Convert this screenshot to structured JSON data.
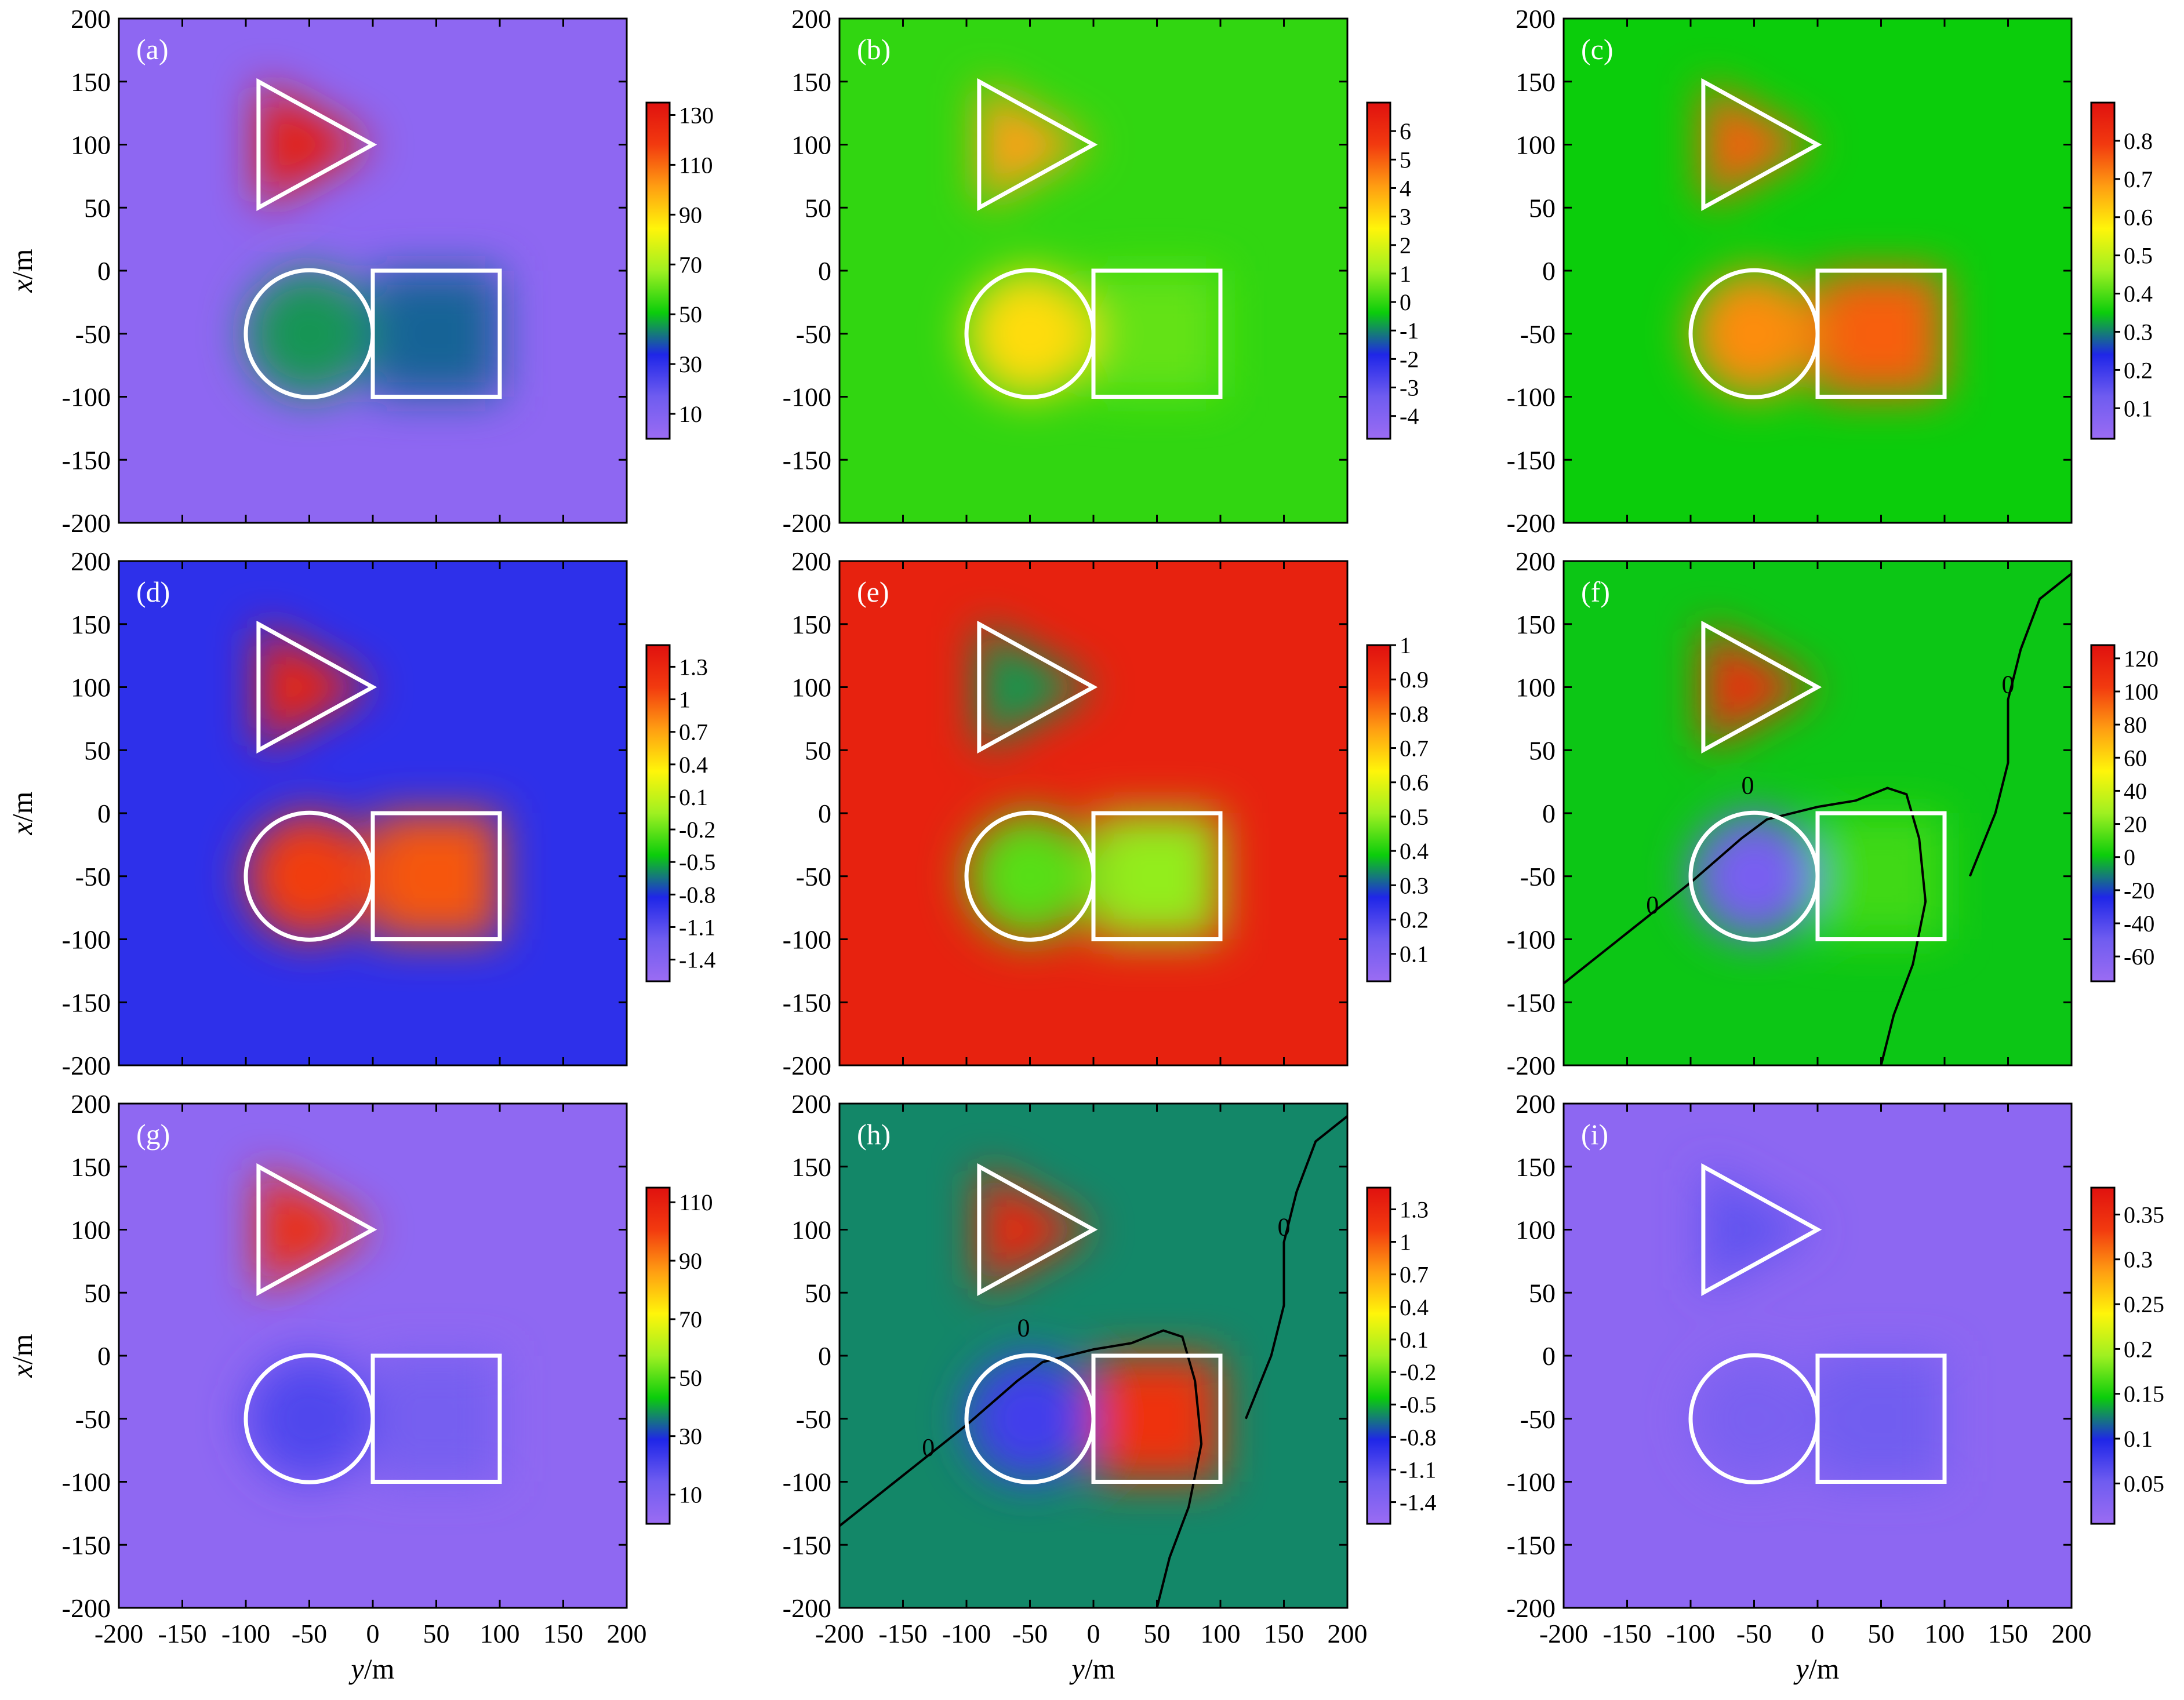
{
  "figure": {
    "x_axis_label_italic": "y",
    "x_axis_label_unit": "/m",
    "y_axis_label_italic": "x",
    "y_axis_label_unit": "/m"
  },
  "colormap": [
    "#9b6cf3",
    "#6f5cf0",
    "#1f26e8",
    "#0bcd0b",
    "#9ff021",
    "#fff50a",
    "#ff9e12",
    "#f23a0f",
    "#e0110f"
  ],
  "outline_color": "#ffffff",
  "chart_data": [
    {
      "type": "heatmap",
      "panel": "(a)",
      "xlim": [
        -200,
        200
      ],
      "ylim": [
        -200,
        200
      ],
      "x_ticks": [
        -200,
        -150,
        -100,
        -50,
        0,
        50,
        100,
        150,
        200
      ],
      "y_ticks": [
        -200,
        -150,
        -100,
        -50,
        0,
        50,
        100,
        150,
        200
      ],
      "colorbar": {
        "range": [
          0,
          135
        ],
        "ticks": [
          "130",
          "110",
          "90",
          "70",
          "50",
          "30",
          "10"
        ],
        "tick_values": [
          130,
          110,
          90,
          70,
          50,
          30,
          10
        ]
      },
      "anomalies": [
        {
          "shape": "triangle",
          "value": 130
        },
        {
          "shape": "circle",
          "value": 45
        },
        {
          "shape": "square",
          "value": 40
        }
      ],
      "background": 5
    },
    {
      "type": "heatmap",
      "panel": "(b)",
      "xlim": [
        -200,
        200
      ],
      "ylim": [
        -200,
        200
      ],
      "x_ticks": [
        -200,
        -150,
        -100,
        -50,
        0,
        50,
        100,
        150,
        200
      ],
      "y_ticks": [
        -200,
        -150,
        -100,
        -50,
        0,
        50,
        100,
        150,
        200
      ],
      "colorbar": {
        "range": [
          -4.8,
          7
        ],
        "ticks": [
          "6",
          "5",
          "4",
          "3",
          "2",
          "1",
          "0",
          "-1",
          "-2",
          "-3",
          "-4"
        ],
        "tick_values": [
          6,
          5,
          4,
          3,
          2,
          1,
          0,
          -1,
          -2,
          -3,
          -4
        ]
      },
      "anomalies": [
        {
          "shape": "triangle",
          "value": 4
        },
        {
          "shape": "circle",
          "value": 3
        },
        {
          "shape": "square",
          "value": 0.5
        }
      ],
      "background": 0
    },
    {
      "type": "heatmap",
      "panel": "(c)",
      "xlim": [
        -200,
        200
      ],
      "ylim": [
        -200,
        200
      ],
      "x_ticks": [
        -200,
        -150,
        -100,
        -50,
        0,
        50,
        100,
        150,
        200
      ],
      "y_ticks": [
        -200,
        -150,
        -100,
        -50,
        0,
        50,
        100,
        150,
        200
      ],
      "colorbar": {
        "range": [
          0.02,
          0.9
        ],
        "ticks": [
          "0.8",
          "0.7",
          "0.6",
          "0.5",
          "0.4",
          "0.3",
          "0.2",
          "0.1"
        ],
        "tick_values": [
          0.8,
          0.7,
          0.6,
          0.5,
          0.4,
          0.3,
          0.2,
          0.1
        ]
      },
      "anomalies": [
        {
          "shape": "triangle",
          "value": 0.75
        },
        {
          "shape": "circle",
          "value": 0.7
        },
        {
          "shape": "square",
          "value": 0.75
        }
      ],
      "background": 0.35
    },
    {
      "type": "heatmap",
      "panel": "(d)",
      "xlim": [
        -200,
        200
      ],
      "ylim": [
        -200,
        200
      ],
      "x_ticks": [
        -200,
        -150,
        -100,
        -50,
        0,
        50,
        100,
        150,
        200
      ],
      "y_ticks": [
        -200,
        -150,
        -100,
        -50,
        0,
        50,
        100,
        150,
        200
      ],
      "colorbar": {
        "range": [
          -1.6,
          1.5
        ],
        "ticks": [
          "1.3",
          "1",
          "0.7",
          "0.4",
          "0.1",
          "-0.2",
          "-0.5",
          "-0.8",
          "-1.1",
          "-1.4"
        ],
        "tick_values": [
          1.3,
          1,
          0.7,
          0.4,
          0.1,
          -0.2,
          -0.5,
          -0.8,
          -1.1,
          -1.4
        ]
      },
      "anomalies": [
        {
          "shape": "triangle",
          "value": 1.3
        },
        {
          "shape": "circle",
          "value": 1.1
        },
        {
          "shape": "square",
          "value": 1.0
        }
      ],
      "background": -0.9
    },
    {
      "type": "heatmap",
      "panel": "(e)",
      "xlim": [
        -200,
        200
      ],
      "ylim": [
        -200,
        200
      ],
      "x_ticks": [
        -200,
        -150,
        -100,
        -50,
        0,
        50,
        100,
        150,
        200
      ],
      "y_ticks": [
        -200,
        -150,
        -100,
        -50,
        0,
        50,
        100,
        150,
        200
      ],
      "colorbar": {
        "range": [
          0.02,
          1
        ],
        "ticks": [
          "1",
          "0.9",
          "0.8",
          "0.7",
          "0.6",
          "0.5",
          "0.4",
          "0.3",
          "0.2",
          "0.1"
        ],
        "tick_values": [
          1,
          0.9,
          0.8,
          0.7,
          0.6,
          0.5,
          0.4,
          0.3,
          0.2,
          0.1
        ]
      },
      "anomalies": [
        {
          "shape": "triangle",
          "value": 0.35
        },
        {
          "shape": "circle",
          "value": 0.45
        },
        {
          "shape": "square",
          "value": 0.5
        }
      ],
      "background": 0.95
    },
    {
      "type": "heatmap",
      "panel": "(f)",
      "xlim": [
        -200,
        200
      ],
      "ylim": [
        -200,
        200
      ],
      "x_ticks": [
        -200,
        -150,
        -100,
        -50,
        0,
        50,
        100,
        150,
        200
      ],
      "y_ticks": [
        -200,
        -150,
        -100,
        -50,
        0,
        50,
        100,
        150,
        200
      ],
      "colorbar": {
        "range": [
          -75,
          128
        ],
        "ticks": [
          "120",
          "100",
          "80",
          "60",
          "40",
          "20",
          "0",
          "-20",
          "-40",
          "-60"
        ],
        "tick_values": [
          120,
          100,
          80,
          60,
          40,
          20,
          0,
          -20,
          -40,
          -60
        ]
      },
      "anomalies": [
        {
          "shape": "triangle",
          "value": 110
        },
        {
          "shape": "circle",
          "value": -55
        },
        {
          "shape": "square",
          "value": 10
        }
      ],
      "background": 0,
      "contour_label": "0"
    },
    {
      "type": "heatmap",
      "panel": "(g)",
      "xlim": [
        -200,
        200
      ],
      "ylim": [
        -200,
        200
      ],
      "x_ticks": [
        -200,
        -150,
        -100,
        -50,
        0,
        50,
        100,
        150,
        200
      ],
      "y_ticks": [
        -200,
        -150,
        -100,
        -50,
        0,
        50,
        100,
        150,
        200
      ],
      "colorbar": {
        "range": [
          0,
          115
        ],
        "ticks": [
          "110",
          "90",
          "70",
          "50",
          "30",
          "10"
        ],
        "tick_values": [
          110,
          90,
          70,
          50,
          30,
          10
        ]
      },
      "anomalies": [
        {
          "shape": "triangle",
          "value": 105
        },
        {
          "shape": "circle",
          "value": 20
        },
        {
          "shape": "square",
          "value": 12
        }
      ],
      "background": 4
    },
    {
      "type": "heatmap",
      "panel": "(h)",
      "xlim": [
        -200,
        200
      ],
      "ylim": [
        -200,
        200
      ],
      "x_ticks": [
        -200,
        -150,
        -100,
        -50,
        0,
        50,
        100,
        150,
        200
      ],
      "y_ticks": [
        -200,
        -150,
        -100,
        -50,
        0,
        50,
        100,
        150,
        200
      ],
      "colorbar": {
        "range": [
          -1.6,
          1.5
        ],
        "ticks": [
          "1.3",
          "1",
          "0.7",
          "0.4",
          "0.1",
          "-0.2",
          "-0.5",
          "-0.8",
          "-1.1",
          "-1.4"
        ],
        "tick_values": [
          1.3,
          1,
          0.7,
          0.4,
          0.1,
          -0.2,
          -0.5,
          -0.8,
          -1.1,
          -1.4
        ]
      },
      "anomalies": [
        {
          "shape": "triangle",
          "value": 1.3
        },
        {
          "shape": "circle",
          "value": -1.0
        },
        {
          "shape": "square",
          "value": 1.2
        }
      ],
      "background": -0.6,
      "contour_label": "0"
    },
    {
      "type": "heatmap",
      "panel": "(i)",
      "xlim": [
        -200,
        200
      ],
      "ylim": [
        -200,
        200
      ],
      "x_ticks": [
        -200,
        -150,
        -100,
        -50,
        0,
        50,
        100,
        150,
        200
      ],
      "y_ticks": [
        -200,
        -150,
        -100,
        -50,
        0,
        50,
        100,
        150,
        200
      ],
      "colorbar": {
        "range": [
          0.005,
          0.38
        ],
        "ticks": [
          "0.35",
          "0.3",
          "0.25",
          "0.2",
          "0.15",
          "0.1",
          "0.05"
        ],
        "tick_values": [
          0.35,
          0.3,
          0.25,
          0.2,
          0.15,
          0.1,
          0.05
        ]
      },
      "anomalies": [
        {
          "shape": "triangle",
          "value": 0.06
        },
        {
          "shape": "circle",
          "value": 0.04
        },
        {
          "shape": "square",
          "value": 0.05
        }
      ],
      "background": 0.02
    }
  ]
}
